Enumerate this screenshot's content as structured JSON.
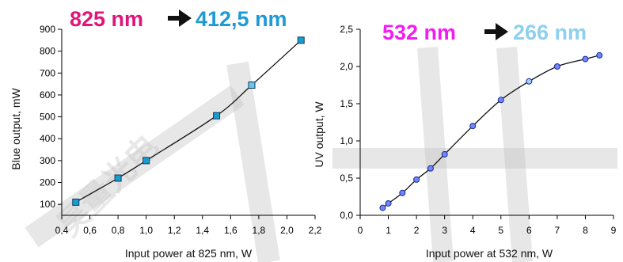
{
  "watermark": {
    "text": "昊量光电"
  },
  "colors": {
    "magenta": "#e0157a",
    "blue": "#1e9ad6",
    "pink": "#f21df2",
    "lightblue": "#8fd0ee",
    "arrow": "#111111",
    "marker1_fill": "#1a9cd0",
    "marker1_highlight": "#6ec3e6",
    "marker2_fill": "#6f86ff",
    "marker2_highlight": "#a9ccff"
  },
  "chart_data": [
    {
      "type": "line",
      "title_parts": [
        "825 nm",
        "412,5 nm"
      ],
      "xlabel": "Input power at 825 nm, W",
      "ylabel": "Blue output, mW",
      "xlim": [
        0.4,
        2.2
      ],
      "ylim": [
        50,
        900
      ],
      "xticks": [
        0.4,
        0.6,
        0.8,
        1.0,
        1.2,
        1.4,
        1.6,
        1.8,
        2.0,
        2.2
      ],
      "xtick_labels": [
        "0,4",
        "0,6",
        "0,8",
        "1,0",
        "1,2",
        "1,4",
        "1,6",
        "1,8",
        "2,0",
        "2,2"
      ],
      "yticks": [
        100,
        200,
        300,
        400,
        500,
        600,
        700,
        800,
        900
      ],
      "ytick_labels": [
        "100",
        "200",
        "300",
        "400",
        "500",
        "600",
        "700",
        "800",
        "900"
      ],
      "marker": "square",
      "highlight_index": 4,
      "series": [
        {
          "x": [
            0.5,
            0.8,
            1.0,
            1.5,
            1.75,
            2.1
          ],
          "y": [
            110,
            220,
            300,
            505,
            645,
            850
          ]
        }
      ],
      "grid": false
    },
    {
      "type": "line",
      "title_parts": [
        "532 nm",
        "266 nm"
      ],
      "xlabel": "Input power at 532 nm, W",
      "ylabel": "UV output, W",
      "xlim": [
        0,
        9
      ],
      "ylim": [
        0,
        2.5
      ],
      "xticks": [
        0,
        1,
        2,
        3,
        4,
        5,
        6,
        7,
        8,
        9
      ],
      "xtick_labels": [
        "0",
        "1",
        "2",
        "3",
        "4",
        "5",
        "6",
        "7",
        "8",
        "9"
      ],
      "yticks": [
        0,
        0.5,
        1.0,
        1.5,
        2.0,
        2.5
      ],
      "ytick_labels": [
        "0,0",
        "0,5",
        "1,0",
        "1,5",
        "2,0",
        "2,5"
      ],
      "marker": "circle",
      "highlight_index": 8,
      "series": [
        {
          "x": [
            0.8,
            1.0,
            1.5,
            2.0,
            2.5,
            3.0,
            4.0,
            5.0,
            6.0,
            7.0,
            8.0,
            8.5
          ],
          "y": [
            0.1,
            0.16,
            0.3,
            0.48,
            0.63,
            0.82,
            1.2,
            1.55,
            1.8,
            2.0,
            2.1,
            2.15
          ]
        }
      ],
      "grid": false
    }
  ]
}
